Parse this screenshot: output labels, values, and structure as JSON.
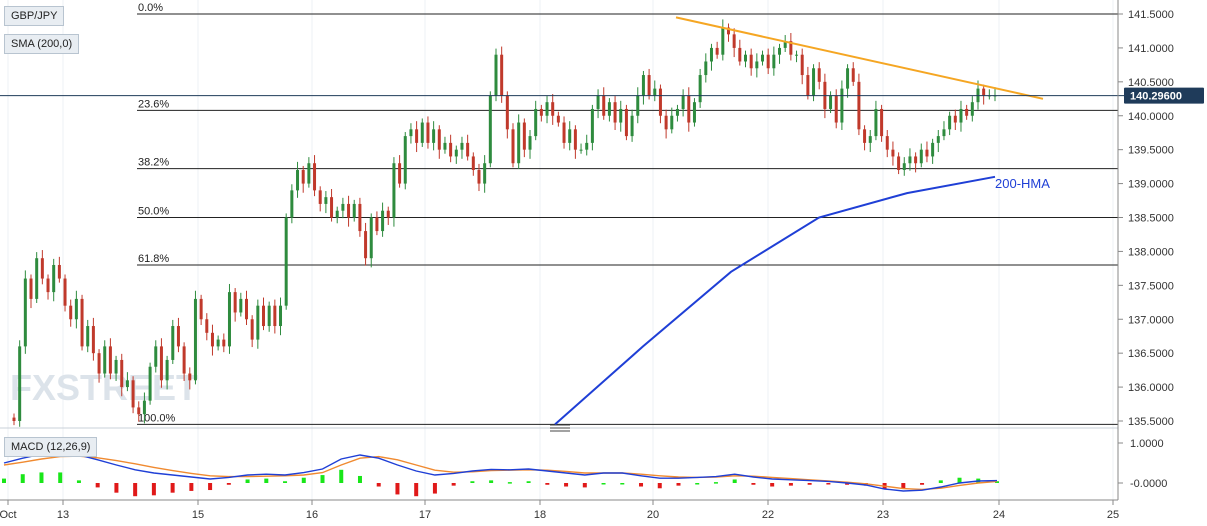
{
  "symbol_label": "GBP/JPY",
  "sma_label": "SMA (200,0)",
  "macd_label": "MACD (12,26,9)",
  "watermark": "FXSTREET",
  "price_tag": "140.29600",
  "hma_label": "200-HMA",
  "colors": {
    "up": "#2e8b3e",
    "down": "#c0392b",
    "hma": "#1f3fd6",
    "trendline": "#f5a623",
    "macd_line": "#1f3fd6",
    "signal_line": "#f08a30",
    "hist_pos": "#19e619",
    "hist_neg": "#e01919",
    "price_tag_bg": "#1f3b5a"
  },
  "chart_data": [
    {
      "type": "candlestick",
      "title": "GBP/JPY",
      "ylim": [
        135.3,
        141.6
      ],
      "y_ticks": [
        "141.5000",
        "141.0000",
        "140.5000",
        "140.0000",
        "139.5000",
        "139.0000",
        "138.5000",
        "138.0000",
        "137.5000",
        "137.0000",
        "136.5000",
        "136.0000",
        "135.5000"
      ],
      "x_ticks": [
        "Oct",
        "13",
        "15",
        "16",
        "17",
        "18",
        "20",
        "22",
        "23",
        "24",
        "25"
      ],
      "fibonacci": [
        {
          "label": "0.0%",
          "value": 141.5
        },
        {
          "label": "23.6%",
          "value": 140.08
        },
        {
          "label": "38.2%",
          "value": 139.22
        },
        {
          "label": "50.0%",
          "value": 138.5
        },
        {
          "label": "61.8%",
          "value": 137.8
        },
        {
          "label": "100.0%",
          "value": 135.45
        }
      ],
      "last_price": 140.296,
      "closes": [
        135.5,
        136.6,
        137.6,
        137.3,
        137.9,
        137.6,
        137.4,
        137.8,
        137.6,
        137.2,
        137.0,
        137.3,
        136.6,
        136.9,
        136.5,
        136.2,
        136.6,
        136.2,
        136.4,
        136.0,
        136.1,
        135.7,
        135.6,
        135.8,
        136.3,
        136.6,
        136.1,
        136.4,
        136.9,
        136.6,
        136.2,
        136.1,
        137.3,
        137.0,
        136.8,
        136.6,
        136.7,
        136.6,
        137.4,
        137.1,
        137.3,
        137.0,
        136.7,
        137.2,
        136.9,
        137.2,
        136.9,
        137.2,
        138.5,
        138.9,
        139.2,
        139.0,
        139.3,
        138.9,
        138.7,
        138.8,
        138.5,
        138.6,
        138.7,
        138.5,
        138.7,
        138.3,
        137.9,
        138.5,
        138.3,
        138.6,
        138.5,
        139.3,
        139.0,
        139.7,
        139.8,
        139.6,
        139.9,
        139.6,
        139.8,
        139.5,
        139.6,
        139.4,
        139.5,
        139.6,
        139.4,
        139.2,
        139.0,
        139.3,
        140.3,
        140.9,
        140.3,
        139.8,
        139.3,
        139.9,
        139.5,
        139.7,
        140.1,
        140.0,
        140.2,
        140.0,
        139.9,
        139.6,
        139.8,
        139.5,
        139.5,
        139.6,
        140.1,
        140.3,
        140.0,
        140.2,
        139.9,
        140.1,
        139.7,
        140.0,
        140.3,
        140.6,
        140.3,
        140.4,
        140.0,
        139.8,
        140.0,
        140.1,
        140.3,
        139.9,
        140.2,
        140.6,
        140.8,
        141.0,
        140.9,
        141.3,
        141.2,
        141.0,
        140.8,
        140.9,
        140.7,
        140.8,
        140.9,
        140.7,
        140.9,
        141.0,
        141.1,
        140.9,
        140.9,
        140.6,
        140.3,
        140.7,
        140.5,
        140.1,
        140.3,
        139.9,
        140.4,
        140.7,
        140.5,
        139.8,
        139.6,
        139.7,
        140.1,
        139.7,
        139.5,
        139.4,
        139.2,
        139.3,
        139.4,
        139.3,
        139.5,
        139.4,
        139.6,
        139.7,
        139.8,
        140.0,
        139.9,
        140.1,
        140.0,
        140.2,
        140.4,
        140.3,
        140.3,
        140.3
      ],
      "hma": {
        "x_start": "18",
        "x_end": "24",
        "values": [
          135.45,
          136.6,
          137.7,
          138.5,
          138.86,
          139.1
        ]
      },
      "trendline": {
        "from": 141.45,
        "to": 140.25
      }
    },
    {
      "type": "macd",
      "title": "MACD (12,26,9)",
      "ylim": [
        -0.3,
        1.2
      ],
      "y_ticks": [
        "1.0000",
        "-0.0000"
      ],
      "macd": [
        0.5,
        0.62,
        0.72,
        0.78,
        0.7,
        0.58,
        0.45,
        0.33,
        0.25,
        0.2,
        0.15,
        0.1,
        0.14,
        0.2,
        0.22,
        0.2,
        0.26,
        0.35,
        0.6,
        0.7,
        0.62,
        0.45,
        0.3,
        0.2,
        0.24,
        0.3,
        0.34,
        0.33,
        0.35,
        0.3,
        0.25,
        0.2,
        0.25,
        0.25,
        0.18,
        0.12,
        0.12,
        0.14,
        0.16,
        0.22,
        0.15,
        0.1,
        0.08,
        0.06,
        0.04,
        0.0,
        -0.05,
        -0.15,
        -0.2,
        -0.18,
        -0.1,
        0.0,
        0.05,
        0.06
      ],
      "signal": [
        0.45,
        0.52,
        0.6,
        0.66,
        0.67,
        0.63,
        0.56,
        0.48,
        0.39,
        0.31,
        0.24,
        0.18,
        0.16,
        0.16,
        0.17,
        0.18,
        0.2,
        0.26,
        0.45,
        0.62,
        0.66,
        0.58,
        0.45,
        0.32,
        0.27,
        0.28,
        0.31,
        0.32,
        0.33,
        0.32,
        0.29,
        0.25,
        0.25,
        0.25,
        0.22,
        0.18,
        0.15,
        0.14,
        0.15,
        0.18,
        0.17,
        0.14,
        0.11,
        0.08,
        0.05,
        0.02,
        -0.02,
        -0.08,
        -0.14,
        -0.16,
        -0.13,
        -0.06,
        0.0,
        0.04
      ]
    }
  ]
}
